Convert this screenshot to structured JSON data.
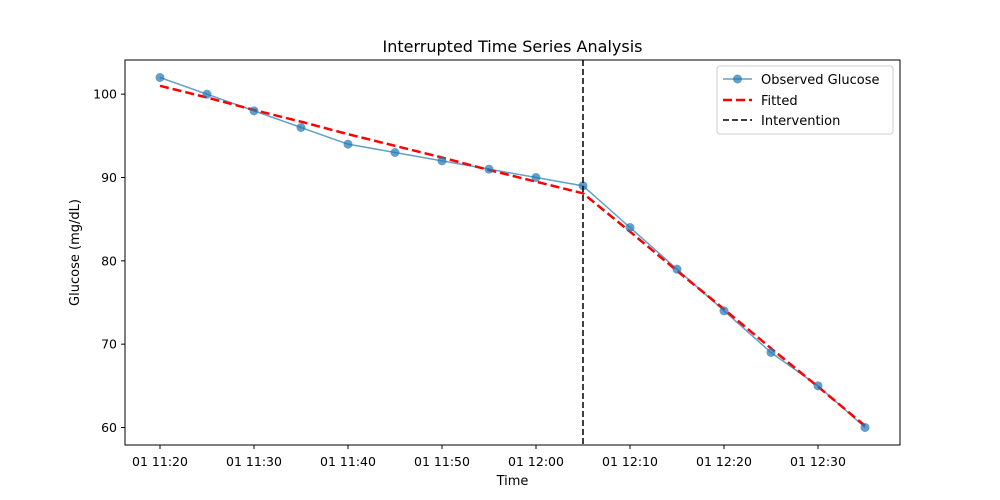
{
  "chart_data": {
    "type": "line",
    "title": "Interrupted Time Series Analysis",
    "xlabel": "Time",
    "ylabel": "Glucose (mg/dL)",
    "x": [
      "01 11:20",
      "01 11:25",
      "01 11:30",
      "01 11:35",
      "01 11:40",
      "01 11:45",
      "01 11:50",
      "01 11:55",
      "01 12:00",
      "01 12:05",
      "01 12:10",
      "01 12:15",
      "01 12:20",
      "01 12:25",
      "01 12:30",
      "01 12:35"
    ],
    "xticks": [
      "01 11:20",
      "01 11:30",
      "01 11:40",
      "01 11:50",
      "01 12:00",
      "01 12:10",
      "01 12:20",
      "01 12:30"
    ],
    "yticks": [
      60,
      70,
      80,
      90,
      100
    ],
    "ylim": [
      57.9,
      104.1
    ],
    "series": [
      {
        "name": "Observed Glucose",
        "style": "solid-line-circle-markers",
        "color": "#1f77b4",
        "values": [
          102,
          100,
          98,
          96,
          94,
          93,
          92,
          91,
          90,
          89,
          84,
          79,
          74,
          69,
          65,
          60
        ]
      },
      {
        "name": "Fitted",
        "style": "dashed",
        "color": "#ff0000",
        "values": [
          101,
          99.6,
          98.1,
          96.7,
          95.2,
          93.8,
          92.4,
          90.9,
          89.5,
          88.1,
          83.5,
          78.8,
          74.2,
          69.5,
          64.9,
          60.2
        ]
      }
    ],
    "intervention": {
      "name": "Intervention",
      "x": "01 12:05",
      "color": "#000000",
      "style": "dashed"
    },
    "legend_position": "top-right",
    "grid": false
  }
}
